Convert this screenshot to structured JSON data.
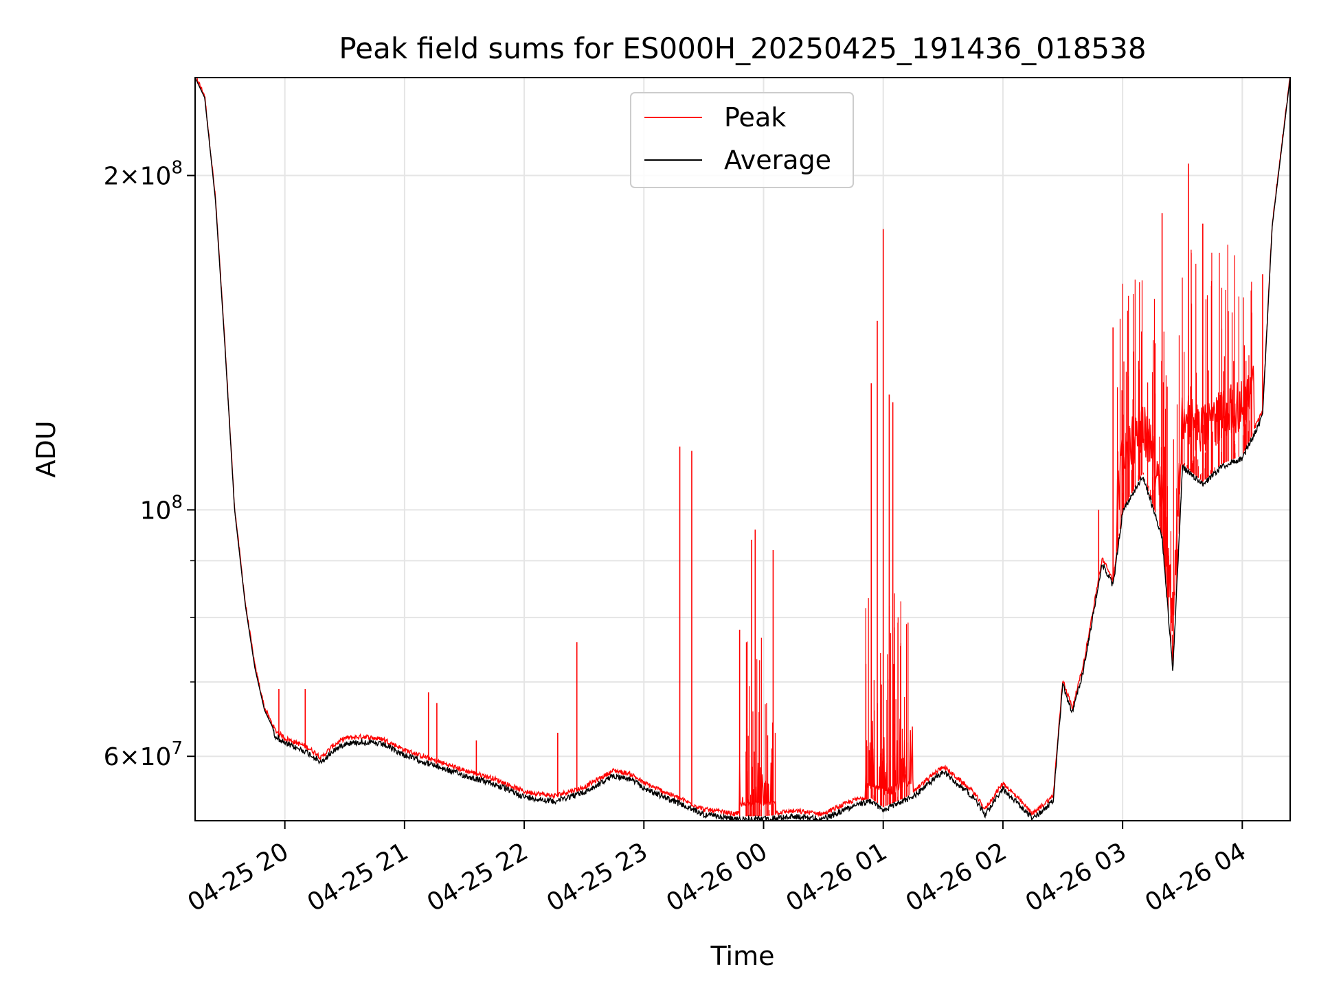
{
  "chart_data": {
    "type": "line",
    "title": "Peak field sums for ES000H_20250425_191436_018538",
    "xlabel": "Time",
    "ylabel": "ADU",
    "yscale": "log",
    "ylim": [
      52500000,
      245000000
    ],
    "grid": true,
    "legend": {
      "placement": "top-center",
      "entries": [
        "Peak",
        "Average"
      ]
    },
    "x_ticks": [
      "04-25 20",
      "04-25 21",
      "04-25 22",
      "04-25 23",
      "04-26 00",
      "04-26 01",
      "04-26 02",
      "04-26 03",
      "04-26 04"
    ],
    "y_major_ticks": [
      {
        "value": 60000000,
        "label_mant": "6",
        "label_exp": "7"
      },
      {
        "value": 100000000,
        "label_mant": "",
        "label_exp": "8"
      },
      {
        "value": 200000000,
        "label_mant": "2",
        "label_exp": "8"
      }
    ],
    "series": [
      {
        "name": "Average",
        "color": "#000000",
        "x_hours": [
          19.25,
          19.33,
          19.42,
          19.5,
          19.58,
          19.67,
          19.75,
          19.83,
          19.92,
          20.0,
          20.08,
          20.17,
          20.27,
          20.3,
          20.4,
          20.5,
          20.67,
          20.83,
          21.0,
          21.25,
          21.5,
          21.75,
          22.0,
          22.25,
          22.5,
          22.75,
          22.9,
          23.0,
          23.25,
          23.5,
          23.75,
          24.0,
          24.25,
          24.5,
          24.75,
          24.9,
          25.0,
          25.25,
          25.5,
          25.75,
          25.85,
          26.0,
          26.25,
          26.42,
          26.5,
          26.58,
          26.67,
          26.83,
          26.92,
          27.0,
          27.17,
          27.33,
          27.42,
          27.5,
          27.67,
          27.83,
          28.0,
          28.17,
          28.25,
          28.4
        ],
        "values": [
          245000000,
          235000000,
          190000000,
          140000000,
          100000000,
          82000000,
          72000000,
          66000000,
          63000000,
          62000000,
          61500000,
          61000000,
          60000000,
          59500000,
          61000000,
          62000000,
          62200000,
          61800000,
          60500000,
          59200000,
          58000000,
          57000000,
          55500000,
          55000000,
          56000000,
          58000000,
          57500000,
          56500000,
          55000000,
          53500000,
          53000000,
          53000000,
          53300000,
          53000000,
          54500000,
          55000000,
          54000000,
          55500000,
          58500000,
          55500000,
          53500000,
          56500000,
          53000000,
          55000000,
          70000000,
          66000000,
          72000000,
          90000000,
          86000000,
          100000000,
          108000000,
          95000000,
          72000000,
          110000000,
          106000000,
          110000000,
          112000000,
          122000000,
          180000000,
          245000000
        ]
      },
      {
        "name": "Peak",
        "color": "#ff0000",
        "spikes": [
          {
            "x_hours": 19.95,
            "value": 69000000
          },
          {
            "x_hours": 20.17,
            "value": 69000000
          },
          {
            "x_hours": 21.2,
            "value": 68500000
          },
          {
            "x_hours": 21.27,
            "value": 67000000
          },
          {
            "x_hours": 21.6,
            "value": 62000000
          },
          {
            "x_hours": 22.28,
            "value": 63000000
          },
          {
            "x_hours": 22.44,
            "value": 76000000
          },
          {
            "x_hours": 23.3,
            "value": 114000000
          },
          {
            "x_hours": 23.4,
            "value": 113000000
          },
          {
            "x_hours": 23.8,
            "value": 78000000
          },
          {
            "x_hours": 23.9,
            "value": 94000000
          },
          {
            "x_hours": 23.93,
            "value": 96000000
          },
          {
            "x_hours": 24.08,
            "value": 92000000
          },
          {
            "x_hours": 24.9,
            "value": 130000000
          },
          {
            "x_hours": 24.95,
            "value": 148000000
          },
          {
            "x_hours": 25.0,
            "value": 179000000
          },
          {
            "x_hours": 25.05,
            "value": 127000000
          },
          {
            "x_hours": 25.08,
            "value": 125000000
          },
          {
            "x_hours": 26.8,
            "value": 100000000
          },
          {
            "x_hours": 26.92,
            "value": 146000000
          },
          {
            "x_hours": 27.33,
            "value": 185000000
          },
          {
            "x_hours": 27.55,
            "value": 205000000
          },
          {
            "x_hours": 27.67,
            "value": 181000000
          },
          {
            "x_hours": 28.17,
            "value": 163000000
          }
        ]
      }
    ]
  }
}
